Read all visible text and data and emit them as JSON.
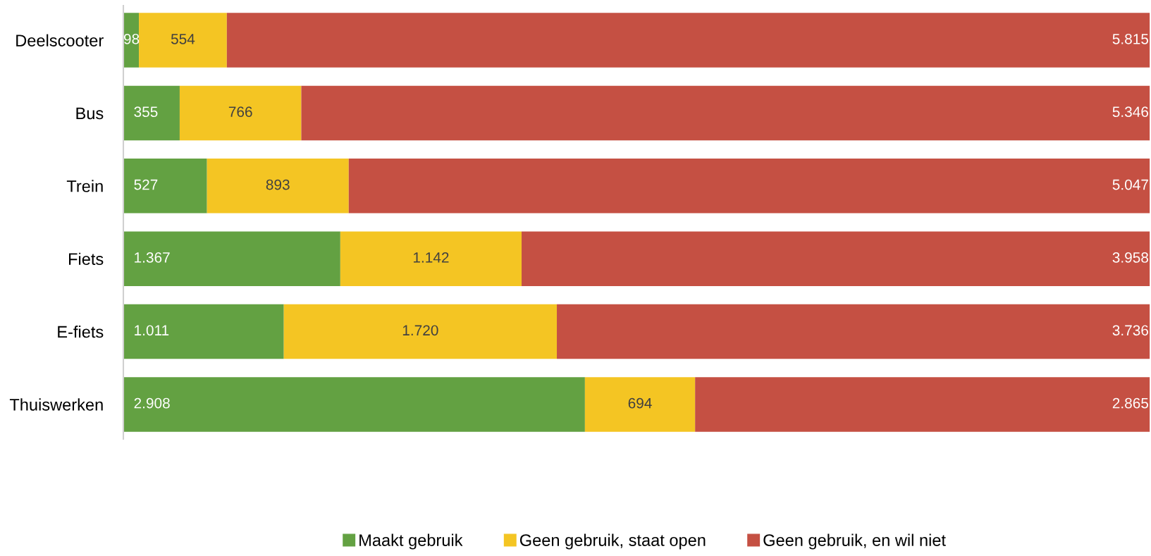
{
  "chart_data": {
    "type": "bar",
    "orientation": "horizontal",
    "stacked": true,
    "legend": "bottom",
    "grid": false,
    "tick_labels": "y",
    "xlim": [
      0,
      6467
    ],
    "categories": [
      "Deelscooter",
      "Bus",
      "Trein",
      "Fiets",
      "E-fiets",
      "Thuiswerken"
    ],
    "series": [
      {
        "name": "Maakt gebruik",
        "color": "#63a142",
        "values": [
          98,
          355,
          527,
          1367,
          1011,
          2908
        ],
        "value_labels": [
          "98",
          "355",
          "527",
          "1.367",
          "1.011",
          "2.908"
        ]
      },
      {
        "name": "Geen gebruik, staat open",
        "color": "#f4c523",
        "values": [
          554,
          766,
          893,
          1142,
          1720,
          694
        ],
        "value_labels": [
          "554",
          "766",
          "893",
          "1.142",
          "1.720",
          "694"
        ]
      },
      {
        "name": "Geen gebruik, en wil niet",
        "color": "#c55043",
        "values": [
          5815,
          5346,
          5047,
          3958,
          3736,
          2865
        ],
        "value_labels": [
          "5.815",
          "5.346",
          "5.047",
          "3.958",
          "3.736",
          "2.865"
        ]
      }
    ]
  }
}
